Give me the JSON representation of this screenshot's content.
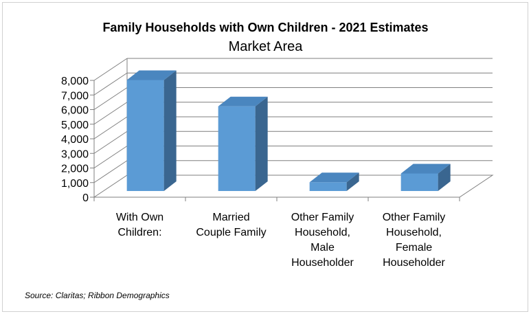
{
  "chart_data": {
    "type": "bar",
    "title": "Family Households with Own Children - 2021 Estimates",
    "subtitle": "Market Area",
    "categories": [
      [
        "With Own",
        "Children:"
      ],
      [
        "Married",
        "Couple Family"
      ],
      [
        "Other Family",
        "Household,",
        "Male",
        "Householder"
      ],
      [
        "Other Family",
        "Household,",
        "Female",
        "Householder"
      ]
    ],
    "values": [
      7600,
      5800,
      600,
      1200
    ],
    "ylim": [
      0,
      8000
    ],
    "yticks": [
      "0",
      "1,000",
      "2,000",
      "3,000",
      "4,000",
      "5,000",
      "6,000",
      "7,000",
      "8,000"
    ],
    "grid": true,
    "colors": {
      "bar_front": "#5b9bd5",
      "bar_top": "#4a86bf",
      "bar_side": "#3a6690",
      "grid": "#7f7f7f"
    }
  },
  "source": "Source: Claritas; Ribbon Demographics"
}
